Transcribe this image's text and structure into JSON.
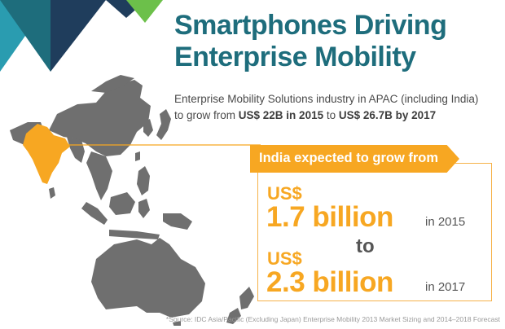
{
  "header": {
    "title_line1": "Smartphones Driving",
    "title_line2": "Enterprise Mobility"
  },
  "subtitle": {
    "line1": "Enterprise Mobility Solutions industry in APAC (including India)",
    "line2_prefix": "to grow from ",
    "line2_value1": "US$ 22B in 2015",
    "line2_mid": " to ",
    "line2_value2": "US$ 26.7B by 2017"
  },
  "callout": {
    "banner": "India expected to grow from",
    "first": {
      "currency": "US$",
      "amount": "1.7 billion",
      "year": "in 2015"
    },
    "connector": "to",
    "second": {
      "currency": "US$",
      "amount": "2.3 billion",
      "year": "in 2017"
    }
  },
  "footer": {
    "source": "*Source: IDC Asia/Pacific (Excluding Japan) Enterprise Mobility 2013 Market Sizing and 2014–2018 Forecast"
  },
  "colors": {
    "teal_dark": "#1e6d7c",
    "teal_light": "#2a9cb0",
    "navy": "#1f3d5c",
    "green": "#6cc04a",
    "orange": "#f7a722",
    "map_gray": "#6f6f6f"
  },
  "icons": {
    "map": "asia-pacific-map-icon",
    "highlight": "india-highlight-icon"
  }
}
